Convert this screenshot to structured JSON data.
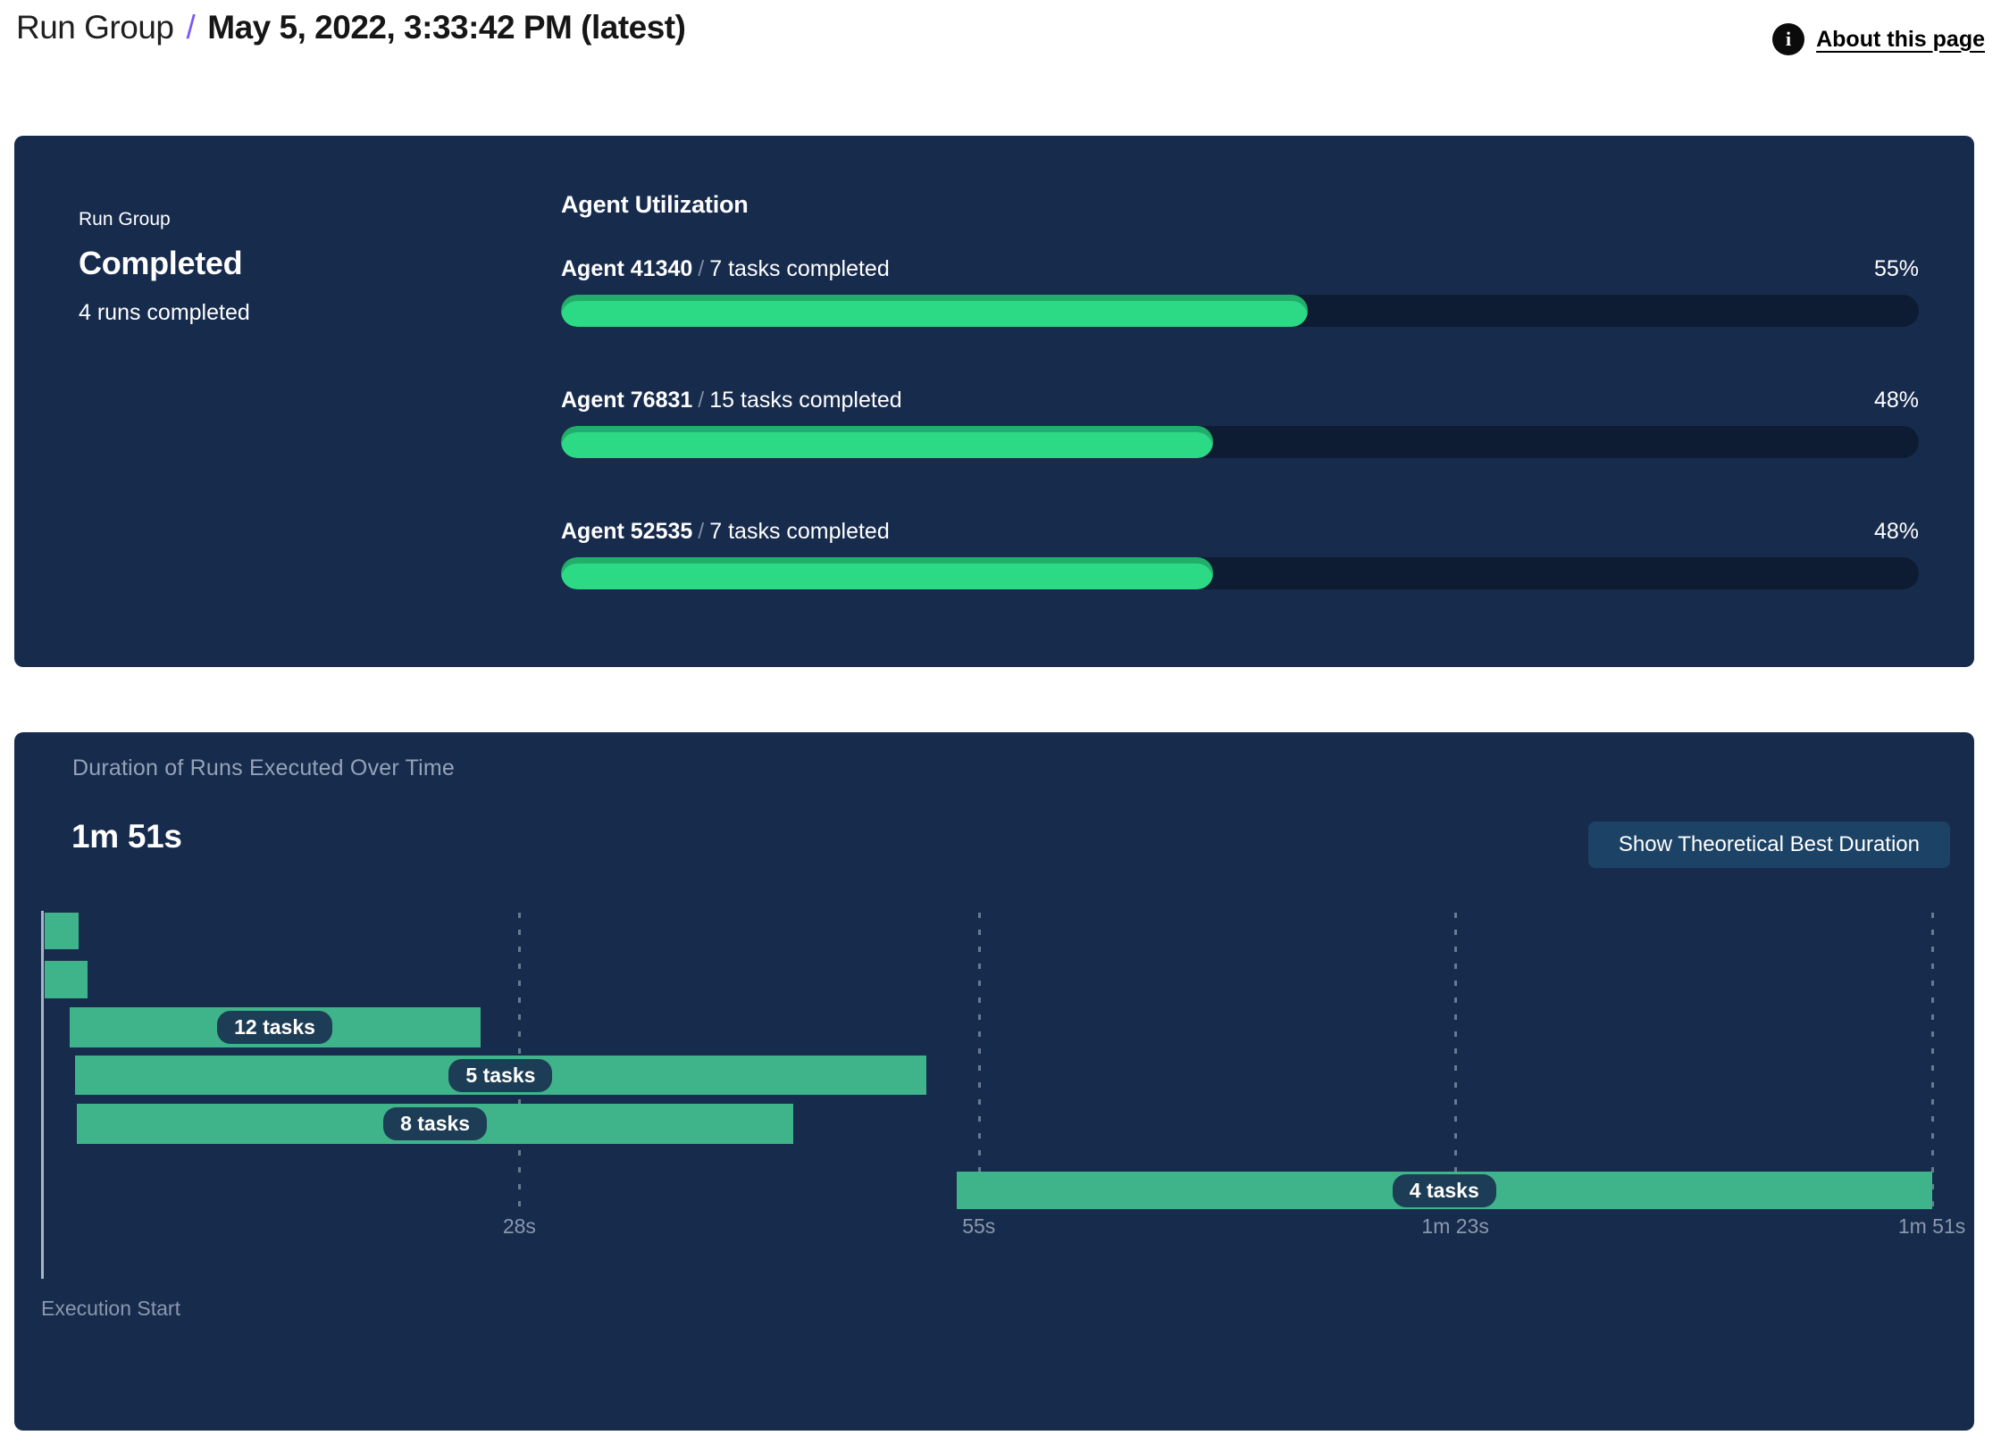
{
  "header": {
    "breadcrumb_root": "Run Group",
    "separator": "/",
    "title": "May 5, 2022, 3:33:42 PM (latest)",
    "about_label": "About this page",
    "info_glyph": "i"
  },
  "run_summary": {
    "label": "Run Group",
    "status": "Completed",
    "runs_completed": "4 runs completed"
  },
  "colors": {
    "panel_background": "#172b4d",
    "breadcrumb_slash": "#7a5af5",
    "progress_fill_green": "#2cd985",
    "progress_track": "#0e1c33",
    "gantt_bar_green": "#3fb38a",
    "task_pill_background": "#1d3d56",
    "button_background": "#1c4366",
    "muted_text": "#95a3b8"
  },
  "chart_data": [
    {
      "type": "bar",
      "title": "Agent Utilization",
      "separator": "/",
      "unit": "percent utilization",
      "bars": [
        {
          "agent": "Agent 41340",
          "tasks_label": "7 tasks completed",
          "percent": 55,
          "percent_label": "55%"
        },
        {
          "agent": "Agent 76831",
          "tasks_label": "15 tasks completed",
          "percent": 48,
          "percent_label": "48%"
        },
        {
          "agent": "Agent 52535",
          "tasks_label": "7 tasks completed",
          "percent": 48,
          "percent_label": "48%"
        }
      ],
      "xlim": [
        0,
        100
      ],
      "legend": "none"
    },
    {
      "type": "gantt",
      "title": "Duration of Runs Executed Over Time",
      "total_duration": "1m 51s",
      "button_label": "Show Theoretical Best Duration",
      "x_axis": {
        "origin_label": "Execution Start",
        "min_seconds": 0,
        "max_seconds": 111,
        "ticks": [
          {
            "label": "28s",
            "seconds": 28
          },
          {
            "label": "55s",
            "seconds": 55
          },
          {
            "label": "1m 23s",
            "seconds": 83
          },
          {
            "label": "1m 51s",
            "seconds": 111
          }
        ],
        "gridlines": "dashed-vertical"
      },
      "bars": [
        {
          "start_s": 0.1,
          "end_s": 2.1,
          "label": ""
        },
        {
          "start_s": 0.1,
          "end_s": 2.65,
          "label": ""
        },
        {
          "start_s": 1.55,
          "end_s": 25.7,
          "label": "12 tasks"
        },
        {
          "start_s": 1.9,
          "end_s": 51.9,
          "label": "5 tasks"
        },
        {
          "start_s": 2.0,
          "end_s": 44.1,
          "label": "8 tasks"
        },
        {
          "start_s": 53.7,
          "end_s": 111,
          "label": "4 tasks"
        }
      ]
    }
  ]
}
